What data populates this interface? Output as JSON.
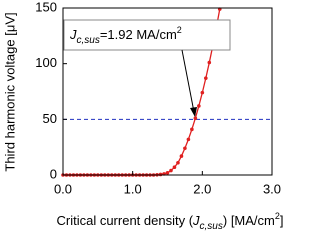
{
  "chart_data": {
    "type": "line",
    "x": [
      0,
      0.05,
      0.1,
      0.15,
      0.2,
      0.25,
      0.3,
      0.35,
      0.4,
      0.45,
      0.5,
      0.55,
      0.6,
      0.65,
      0.7,
      0.75,
      0.8,
      0.85,
      0.9,
      0.95,
      1.0,
      1.05,
      1.1,
      1.15,
      1.2,
      1.25,
      1.3,
      1.35,
      1.4,
      1.45,
      1.5,
      1.55,
      1.6,
      1.65,
      1.7,
      1.75,
      1.8,
      1.85,
      1.9,
      1.95,
      2.0,
      2.05,
      2.1,
      2.15,
      2.2,
      2.25
    ],
    "values": [
      0,
      0,
      0,
      0,
      0,
      0,
      0,
      0,
      0,
      0,
      0,
      0,
      0,
      0,
      0,
      0,
      0,
      0,
      0,
      0,
      0,
      0,
      0,
      0,
      0,
      0,
      0,
      0.2,
      0.5,
      1,
      2,
      4,
      7,
      11,
      17,
      24,
      32,
      41,
      51,
      62,
      74,
      87,
      101,
      116,
      132,
      149
    ],
    "color": "#e02020",
    "xlim": [
      0,
      3.0
    ],
    "xticks": [
      {
        "value": 0,
        "label": "0.0"
      },
      {
        "value": 1,
        "label": "1.0"
      },
      {
        "value": 2,
        "label": "2.0"
      },
      {
        "value": 3,
        "label": "3.0"
      }
    ],
    "ylim": [
      0,
      150
    ],
    "yticks": [
      0,
      50,
      100,
      150
    ],
    "y_label": "Third harmonic voltage [μV]",
    "x_label_parts": [
      "Critical current density (",
      "J",
      "c,sus",
      ") [MA/cm",
      "2",
      "]"
    ],
    "reference_line": {
      "value": 50,
      "color": "#2030c0"
    },
    "annotation_parts": [
      "J",
      "c,sus",
      "=1.92 MA/cm",
      "2"
    ]
  }
}
